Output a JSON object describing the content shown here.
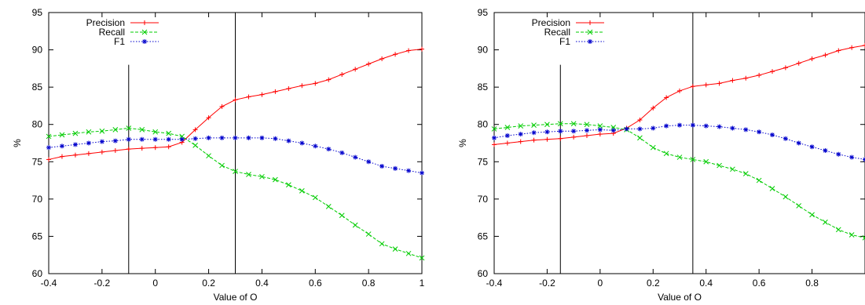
{
  "chart_data": [
    {
      "type": "line",
      "xlabel": "Value of O",
      "ylabel": "%",
      "xlim": [
        -0.4,
        1
      ],
      "ylim": [
        60,
        95
      ],
      "xticks": [
        "-0.4",
        "-0.2",
        "0",
        "0.2",
        "0.4",
        "0.6",
        "0.8",
        "1"
      ],
      "yticks": [
        "60",
        "65",
        "70",
        "75",
        "80",
        "85",
        "90",
        "95"
      ],
      "legend_position": "top-left",
      "vlines": [
        {
          "x": -0.1,
          "y_from": 60,
          "y_to": 88
        },
        {
          "x": 0.3,
          "y_from": 60,
          "y_to": 95
        }
      ],
      "x": [
        -0.4,
        -0.35,
        -0.3,
        -0.25,
        -0.2,
        -0.15,
        -0.1,
        -0.05,
        0,
        0.05,
        0.1,
        0.15,
        0.2,
        0.25,
        0.3,
        0.35,
        0.4,
        0.45,
        0.5,
        0.55,
        0.6,
        0.65,
        0.7,
        0.75,
        0.8,
        0.85,
        0.9,
        0.95,
        1.0
      ],
      "series": [
        {
          "name": "Precision",
          "color": "#ff0000",
          "marker": "plus",
          "dash": "solid",
          "values": [
            75.3,
            75.7,
            75.9,
            76.1,
            76.3,
            76.5,
            76.7,
            76.8,
            76.9,
            77.0,
            77.6,
            79.3,
            80.9,
            82.4,
            83.3,
            83.7,
            84.0,
            84.4,
            84.8,
            85.2,
            85.5,
            86.0,
            86.7,
            87.4,
            88.1,
            88.8,
            89.4,
            89.9,
            90.1
          ]
        },
        {
          "name": "Recall",
          "color": "#00cc00",
          "marker": "cross",
          "dash": "dashed",
          "values": [
            78.4,
            78.6,
            78.8,
            79.0,
            79.1,
            79.3,
            79.5,
            79.3,
            79.0,
            78.8,
            78.4,
            77.2,
            75.8,
            74.5,
            73.7,
            73.3,
            73.0,
            72.6,
            71.9,
            71.1,
            70.2,
            69.0,
            67.8,
            66.5,
            65.3,
            64.0,
            63.3,
            62.7,
            62.1
          ]
        },
        {
          "name": "F1",
          "color": "#0000cc",
          "marker": "star",
          "dash": "dotted",
          "values": [
            76.9,
            77.1,
            77.3,
            77.5,
            77.7,
            77.8,
            78.0,
            78.0,
            78.0,
            78.0,
            78.0,
            78.1,
            78.2,
            78.2,
            78.2,
            78.2,
            78.2,
            78.1,
            77.8,
            77.5,
            77.1,
            76.7,
            76.2,
            75.6,
            75.0,
            74.4,
            74.1,
            73.8,
            73.5
          ]
        }
      ]
    },
    {
      "type": "line",
      "xlabel": "Value of O",
      "ylabel": "%",
      "xlim": [
        -0.4,
        1
      ],
      "ylim": [
        60,
        95
      ],
      "xticks": [
        "-0.4",
        "-0.2",
        "0",
        "0.2",
        "0.4",
        "0.6",
        "0.8"
      ],
      "yticks": [
        "60",
        "65",
        "70",
        "75",
        "80",
        "85",
        "90",
        "95"
      ],
      "legend_position": "top-left",
      "vlines": [
        {
          "x": -0.15,
          "y_from": 60,
          "y_to": 88
        },
        {
          "x": 0.35,
          "y_from": 60,
          "y_to": 95
        }
      ],
      "x": [
        -0.4,
        -0.35,
        -0.3,
        -0.25,
        -0.2,
        -0.15,
        -0.1,
        -0.05,
        0,
        0.05,
        0.1,
        0.15,
        0.2,
        0.25,
        0.3,
        0.35,
        0.4,
        0.45,
        0.5,
        0.55,
        0.6,
        0.65,
        0.7,
        0.75,
        0.8,
        0.85,
        0.9,
        0.95,
        1.0
      ],
      "series": [
        {
          "name": "Precision",
          "color": "#ff0000",
          "marker": "plus",
          "dash": "solid",
          "values": [
            77.3,
            77.5,
            77.7,
            77.9,
            78.0,
            78.1,
            78.3,
            78.5,
            78.7,
            78.8,
            79.5,
            80.6,
            82.2,
            83.6,
            84.5,
            85.1,
            85.3,
            85.5,
            85.9,
            86.2,
            86.6,
            87.1,
            87.6,
            88.2,
            88.8,
            89.3,
            89.9,
            90.3,
            90.6
          ]
        },
        {
          "name": "Recall",
          "color": "#00cc00",
          "marker": "cross",
          "dash": "dashed",
          "values": [
            79.4,
            79.6,
            79.8,
            79.9,
            80.0,
            80.1,
            80.1,
            80.0,
            79.8,
            79.6,
            79.3,
            78.2,
            76.9,
            76.1,
            75.6,
            75.3,
            75.0,
            74.5,
            74.0,
            73.4,
            72.5,
            71.4,
            70.3,
            69.1,
            67.9,
            66.9,
            65.9,
            65.2,
            64.8
          ]
        },
        {
          "name": "F1",
          "color": "#0000cc",
          "marker": "star",
          "dash": "dotted",
          "values": [
            78.2,
            78.5,
            78.7,
            78.9,
            79.0,
            79.1,
            79.1,
            79.2,
            79.3,
            79.2,
            79.4,
            79.4,
            79.5,
            79.8,
            79.9,
            79.9,
            79.8,
            79.7,
            79.5,
            79.3,
            79.0,
            78.6,
            78.1,
            77.5,
            77.0,
            76.5,
            76.0,
            75.6,
            75.3
          ]
        }
      ]
    }
  ]
}
